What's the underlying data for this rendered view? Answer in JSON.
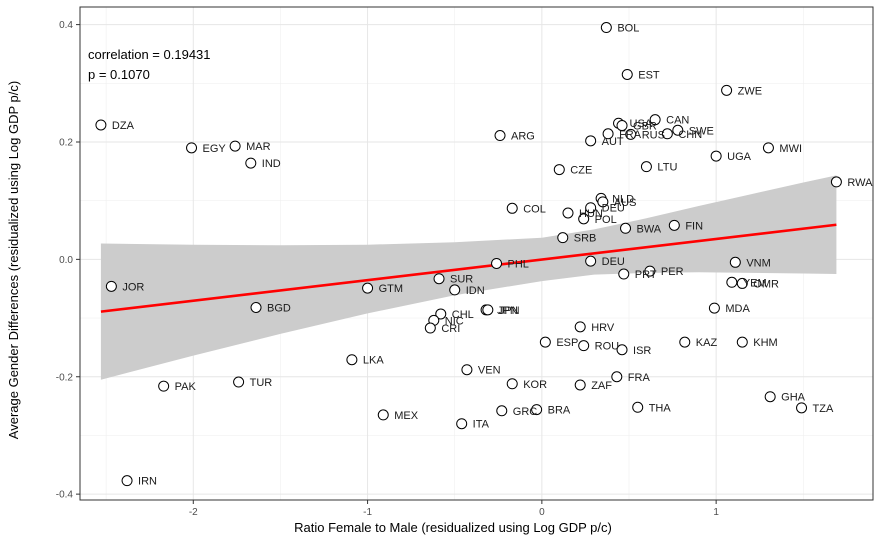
{
  "chart_data": {
    "type": "scatter",
    "title": "",
    "xlabel": "Ratio Female to Male (residualized using Log GDP p/c)",
    "ylabel": "Average Gender Differences (residualized using Log GDP p/c)",
    "xlim": [
      -2.65,
      1.9
    ],
    "ylim": [
      -0.41,
      0.43
    ],
    "x_ticks": [
      -2,
      -1,
      0,
      1
    ],
    "x_tick_labels": [
      "-2",
      "-1",
      "0",
      "1"
    ],
    "y_ticks": [
      -0.4,
      -0.2,
      0.0,
      0.2,
      0.4
    ],
    "y_tick_labels": [
      "-0.4",
      "-0.2",
      "0.0",
      "0.2",
      "0.4"
    ],
    "grid": true,
    "annotations": [
      "correlation = 0.19431",
      "p = 0.1070"
    ],
    "regression": {
      "color": "#ff0000",
      "x": [
        -2.53,
        1.69
      ],
      "y": [
        -0.089,
        0.059
      ],
      "ci_color": "#cccccc",
      "ci_x": [
        -2.53,
        -2.0,
        -1.5,
        -1.0,
        -0.5,
        0.0,
        0.3,
        0.6,
        0.9,
        1.2,
        1.5,
        1.69
      ],
      "ci_lower": [
        -0.205,
        -0.164,
        -0.127,
        -0.092,
        -0.061,
        -0.037,
        -0.026,
        -0.023,
        -0.022,
        -0.023,
        -0.024,
        -0.025
      ],
      "ci_upper": [
        0.027,
        0.025,
        0.024,
        0.025,
        0.029,
        0.037,
        0.051,
        0.07,
        0.091,
        0.111,
        0.131,
        0.143
      ]
    },
    "points": [
      {
        "label": "BOL",
        "x": 0.37,
        "y": 0.395
      },
      {
        "label": "EST",
        "x": 0.49,
        "y": 0.315
      },
      {
        "label": "ZWE",
        "x": 1.06,
        "y": 0.288
      },
      {
        "label": "CAN",
        "x": 0.65,
        "y": 0.238
      },
      {
        "label": "USA",
        "x": 0.44,
        "y": 0.232
      },
      {
        "label": "GBR",
        "x": 0.46,
        "y": 0.228
      },
      {
        "label": "SWE",
        "x": 0.78,
        "y": 0.22
      },
      {
        "label": "CHN",
        "x": 0.72,
        "y": 0.214
      },
      {
        "label": "FRA",
        "x": 0.38,
        "y": 0.214
      },
      {
        "label": "RUS",
        "x": 0.51,
        "y": 0.213
      },
      {
        "label": "AUT",
        "x": 0.28,
        "y": 0.202
      },
      {
        "label": "ARG",
        "x": -0.24,
        "y": 0.211
      },
      {
        "label": "DZA",
        "x": -2.53,
        "y": 0.229
      },
      {
        "label": "EGY",
        "x": -2.01,
        "y": 0.19
      },
      {
        "label": "MAR",
        "x": -1.76,
        "y": 0.193
      },
      {
        "label": "IND",
        "x": -1.67,
        "y": 0.164
      },
      {
        "label": "MWI",
        "x": 1.3,
        "y": 0.19
      },
      {
        "label": "UGA",
        "x": 1.0,
        "y": 0.176
      },
      {
        "label": "LTU",
        "x": 0.6,
        "y": 0.158
      },
      {
        "label": "CZE",
        "x": 0.1,
        "y": 0.153
      },
      {
        "label": "RWA",
        "x": 1.69,
        "y": 0.132
      },
      {
        "label": "NLD",
        "x": 0.34,
        "y": 0.104
      },
      {
        "label": "AUS",
        "x": 0.35,
        "y": 0.098
      },
      {
        "label": "DEU",
        "x": 0.28,
        "y": 0.088
      },
      {
        "label": "COL",
        "x": -0.17,
        "y": 0.087
      },
      {
        "label": "HUN",
        "x": 0.15,
        "y": 0.079
      },
      {
        "label": "POL",
        "x": 0.24,
        "y": 0.069
      },
      {
        "label": "FIN",
        "x": 0.76,
        "y": 0.058
      },
      {
        "label": "BWA",
        "x": 0.48,
        "y": 0.053
      },
      {
        "label": "SRB",
        "x": 0.12,
        "y": 0.037
      },
      {
        "label": "DEU",
        "x": 0.28,
        "y": -0.003
      },
      {
        "label": "PHL",
        "x": -0.26,
        "y": -0.007
      },
      {
        "label": "VNM",
        "x": 1.11,
        "y": -0.005
      },
      {
        "label": "PER",
        "x": 0.62,
        "y": -0.02
      },
      {
        "label": "PRT",
        "x": 0.47,
        "y": -0.025
      },
      {
        "label": "YEM",
        "x": 1.09,
        "y": -0.039
      },
      {
        "label": "OMR",
        "x": 1.15,
        "y": -0.041
      },
      {
        "label": "JOR",
        "x": -2.47,
        "y": -0.046
      },
      {
        "label": "SUR",
        "x": -0.59,
        "y": -0.033
      },
      {
        "label": "GTM",
        "x": -1.0,
        "y": -0.049
      },
      {
        "label": "IDN",
        "x": -0.5,
        "y": -0.052
      },
      {
        "label": "BGD",
        "x": -1.64,
        "y": -0.082
      },
      {
        "label": "MDA",
        "x": 0.99,
        "y": -0.083
      },
      {
        "label": "JPN",
        "x": -0.32,
        "y": -0.086
      },
      {
        "label": "JPN",
        "x": -0.31,
        "y": -0.086
      },
      {
        "label": "CHL",
        "x": -0.58,
        "y": -0.093
      },
      {
        "label": "NIC",
        "x": -0.62,
        "y": -0.104
      },
      {
        "label": "CRI",
        "x": -0.64,
        "y": -0.117
      },
      {
        "label": "HRV",
        "x": 0.22,
        "y": -0.115
      },
      {
        "label": "ESP",
        "x": 0.02,
        "y": -0.141
      },
      {
        "label": "KAZ",
        "x": 0.82,
        "y": -0.141
      },
      {
        "label": "KHM",
        "x": 1.15,
        "y": -0.141
      },
      {
        "label": "ROU",
        "x": 0.24,
        "y": -0.147
      },
      {
        "label": "ISR",
        "x": 0.46,
        "y": -0.154
      },
      {
        "label": "LKA",
        "x": -1.09,
        "y": -0.171
      },
      {
        "label": "VEN",
        "x": -0.43,
        "y": -0.188
      },
      {
        "label": "FRA",
        "x": 0.43,
        "y": -0.2
      },
      {
        "label": "KOR",
        "x": -0.17,
        "y": -0.212
      },
      {
        "label": "ZAF",
        "x": 0.22,
        "y": -0.214
      },
      {
        "label": "PAK",
        "x": -2.17,
        "y": -0.216
      },
      {
        "label": "TUR",
        "x": -1.74,
        "y": -0.209
      },
      {
        "label": "GHA",
        "x": 1.31,
        "y": -0.234
      },
      {
        "label": "TZA",
        "x": 1.49,
        "y": -0.253
      },
      {
        "label": "THA",
        "x": 0.55,
        "y": -0.252
      },
      {
        "label": "GRC",
        "x": -0.23,
        "y": -0.258
      },
      {
        "label": "BRA",
        "x": -0.03,
        "y": -0.256
      },
      {
        "label": "MEX",
        "x": -0.91,
        "y": -0.265
      },
      {
        "label": "ITA",
        "x": -0.46,
        "y": -0.28
      },
      {
        "label": "IRN",
        "x": -2.38,
        "y": -0.377
      }
    ]
  }
}
